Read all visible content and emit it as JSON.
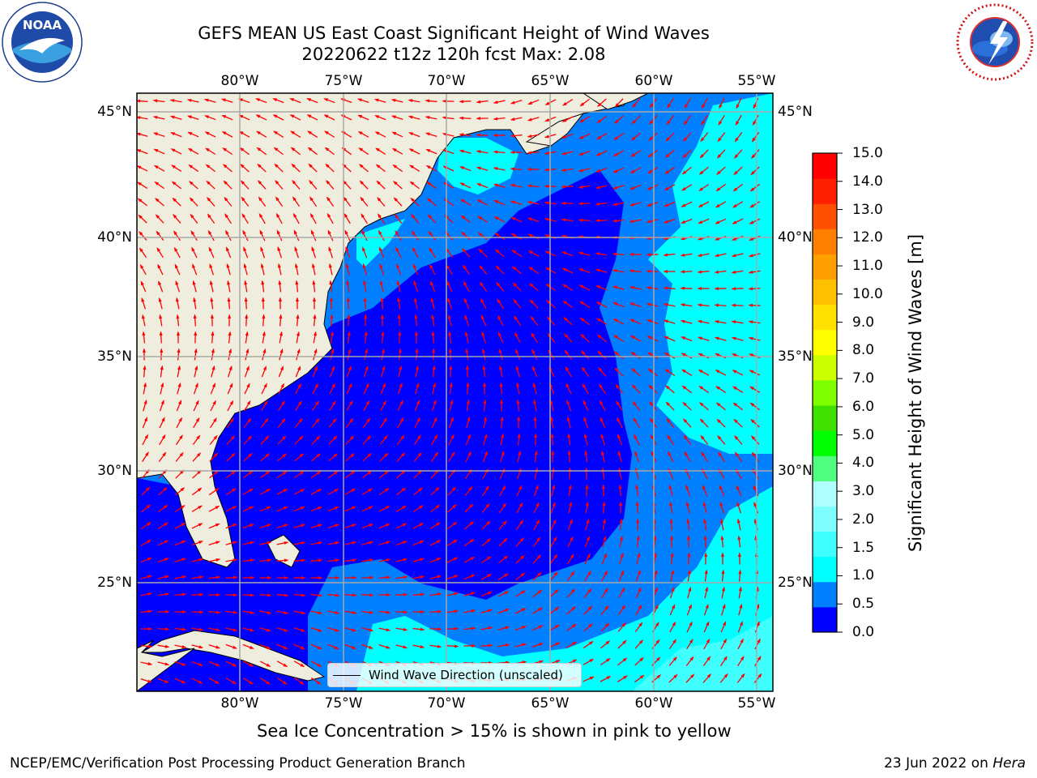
{
  "title": {
    "line1": "GEFS MEAN US East Coast Significant Height of Wind Waves",
    "line2": "20220622 t12z 120h fcst   Max: 2.08"
  },
  "logos": {
    "left": {
      "icon": "noaa-logo",
      "text": "NOAA"
    },
    "right": {
      "icon": "nws-logo",
      "text": "NATIONAL WEATHER SERVICE"
    }
  },
  "map": {
    "lon_labels": [
      "80°W",
      "75°W",
      "70°W",
      "65°W",
      "60°W",
      "55°W"
    ],
    "lat_labels": [
      "45°N",
      "40°N",
      "35°N",
      "30°N",
      "25°N"
    ],
    "land_color": "#efedde",
    "arrow_color": "#ff0000",
    "legend_label": "Wind Wave Direction (unscaled)"
  },
  "colorbar": {
    "label": "Significant Height of Wind Waves [m]",
    "ticks": [
      "15.0",
      "14.0",
      "13.0",
      "12.0",
      "11.0",
      "10.0",
      "9.0",
      "8.0",
      "7.0",
      "6.0",
      "5.0",
      "4.0",
      "3.0",
      "2.0",
      "1.5",
      "1.0",
      "0.5",
      "0.0"
    ],
    "colors_bottom_to_top": [
      "#0000ff",
      "#0080ff",
      "#00ffff",
      "#40ffff",
      "#80ffff",
      "#b0ffff",
      "#50ff80",
      "#00ff00",
      "#40e000",
      "#80ff00",
      "#ccff00",
      "#ffff00",
      "#ffe000",
      "#ffc000",
      "#ffa000",
      "#ff8000",
      "#ff5000",
      "#ff2000",
      "#ff0000"
    ]
  },
  "note": "Sea Ice Concentration > 15% is shown in pink to yellow",
  "footer": {
    "left": "NCEP/EMC/Verification Post Processing Product Generation Branch",
    "right_date": "23 Jun 2022 on ",
    "right_machine": "Hera"
  }
}
